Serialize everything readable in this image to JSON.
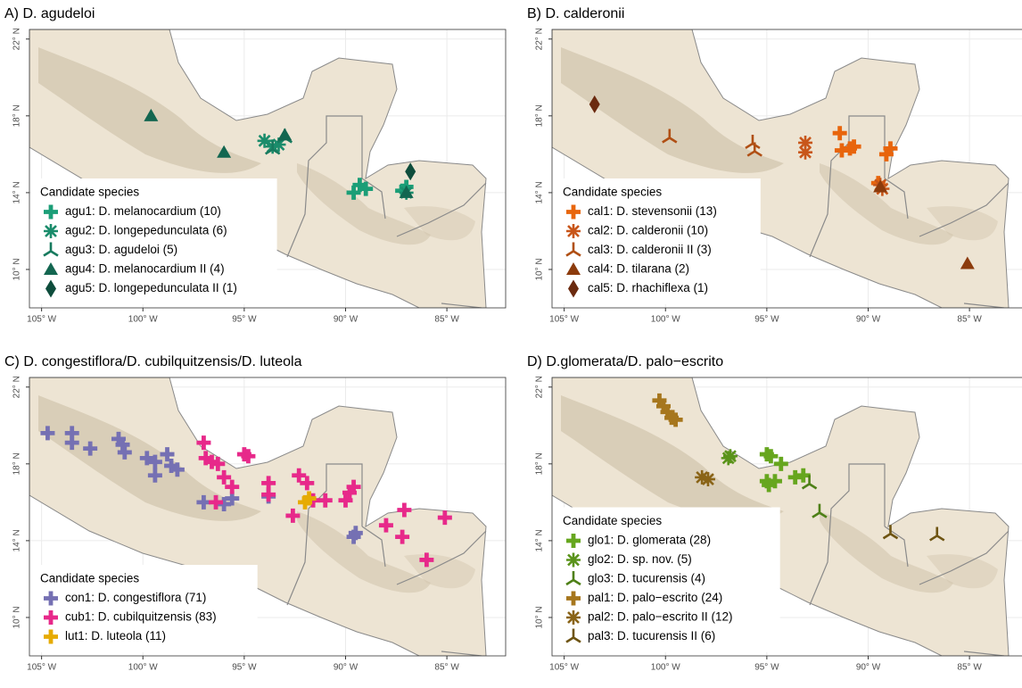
{
  "panels": [
    {
      "title": "A) D. agudeloi",
      "legend_title": "Candidate species",
      "legend_position": "bottom-left",
      "xlim": [
        -105.6,
        -82.1
      ],
      "ylim": [
        8,
        22.5
      ],
      "xticks": [
        {
          "value": -105,
          "label": "105° W"
        },
        {
          "value": -100,
          "label": "100° W"
        },
        {
          "value": -95,
          "label": "95° W"
        },
        {
          "value": -90,
          "label": "90° W"
        },
        {
          "value": -85,
          "label": "85° W"
        }
      ],
      "yticks": [
        {
          "value": 10,
          "label": "10° N"
        },
        {
          "value": 14,
          "label": "14° N"
        },
        {
          "value": 18,
          "label": "18° N"
        },
        {
          "value": 22,
          "label": "22° N"
        }
      ],
      "species": [
        {
          "name": "agu1: D. melanocardium (10)",
          "color": "#1b9e77",
          "shape": "plus",
          "lon": [
            -89.6,
            -89.3,
            -89.0,
            -87.2,
            -87.0
          ],
          "lat": [
            14.0,
            14.4,
            14.2,
            14.1,
            14.3
          ]
        },
        {
          "name": "agu2: D. longepedunculata (6)",
          "color": "#1a8c6b",
          "shape": "star",
          "lon": [
            -94.0,
            -93.6,
            -93.3,
            -87.0
          ],
          "lat": [
            16.7,
            16.4,
            16.5,
            14.0
          ]
        },
        {
          "name": "agu3: D. agudeloi (5)",
          "color": "#177a5e",
          "shape": "tristar",
          "lon": [
            -93.0,
            -93.6
          ],
          "lat": [
            16.9,
            16.3
          ]
        },
        {
          "name": "agu4: D. melanocardium II (4)",
          "color": "#136650",
          "shape": "triangle",
          "lon": [
            -99.6,
            -96.0,
            -93.0,
            -87.0
          ],
          "lat": [
            18.0,
            16.1,
            17.0,
            14.0
          ]
        },
        {
          "name": "agu5: D. longepedunculata II (1)",
          "color": "#0e4d3c",
          "shape": "diamond",
          "lon": [
            -86.8
          ],
          "lat": [
            15.1
          ]
        }
      ]
    },
    {
      "title": "B) D. calderonii",
      "legend_title": "Candidate species",
      "legend_position": "bottom-left",
      "xlim": [
        -105.6,
        -82.1
      ],
      "ylim": [
        8,
        22.5
      ],
      "xticks": [
        {
          "value": -105,
          "label": "105° W"
        },
        {
          "value": -100,
          "label": "100° W"
        },
        {
          "value": -95,
          "label": "95° W"
        },
        {
          "value": -90,
          "label": "90° W"
        },
        {
          "value": -85,
          "label": "85° W"
        }
      ],
      "yticks": [
        {
          "value": 10,
          "label": "10° N"
        },
        {
          "value": 14,
          "label": "14° N"
        },
        {
          "value": 18,
          "label": "18° N"
        },
        {
          "value": 22,
          "label": "22° N"
        }
      ],
      "species": [
        {
          "name": "cal1: D. stevensonii (13)",
          "color": "#e8650c",
          "shape": "plus",
          "lon": [
            -91.4,
            -91.3,
            -90.9,
            -90.7,
            -89.1,
            -88.9,
            -89.5
          ],
          "lat": [
            17.1,
            16.2,
            16.3,
            16.4,
            16.0,
            16.3,
            14.5
          ]
        },
        {
          "name": "cal2: D. calderonii (10)",
          "color": "#c8561a",
          "shape": "star",
          "lon": [
            -93.1,
            -93.1,
            -89.4,
            -89.3
          ],
          "lat": [
            16.6,
            16.1,
            14.4,
            14.2
          ]
        },
        {
          "name": "cal3: D. calderonii II (3)",
          "color": "#b04f14",
          "shape": "tristar",
          "lon": [
            -99.8,
            -95.6,
            -95.7
          ],
          "lat": [
            16.9,
            16.2,
            16.6
          ]
        },
        {
          "name": "cal4: D. tilarana (2)",
          "color": "#8c3b0c",
          "shape": "triangle",
          "lon": [
            -85.1,
            -89.4
          ],
          "lat": [
            10.3,
            14.3
          ]
        },
        {
          "name": "cal5: D. rhachiflexa (1)",
          "color": "#6b2a0f",
          "shape": "diamond",
          "lon": [
            -103.5
          ],
          "lat": [
            18.6
          ]
        }
      ]
    },
    {
      "title": "C) D. congestiflora/D. cubilquitzensis/D. luteola",
      "legend_title": "Candidate species",
      "legend_position": "bottom-left",
      "xlim": [
        -105.6,
        -82.1
      ],
      "ylim": [
        8,
        22.5
      ],
      "xticks": [
        {
          "value": -105,
          "label": "105° W"
        },
        {
          "value": -100,
          "label": "100° W"
        },
        {
          "value": -95,
          "label": "95° W"
        },
        {
          "value": -90,
          "label": "90° W"
        },
        {
          "value": -85,
          "label": "85° W"
        }
      ],
      "yticks": [
        {
          "value": 10,
          "label": "10° N"
        },
        {
          "value": 14,
          "label": "14° N"
        },
        {
          "value": 18,
          "label": "18° N"
        },
        {
          "value": 22,
          "label": "22° N"
        }
      ],
      "species": [
        {
          "name": "con1: D. congestiflora (71)",
          "color": "#7570b3",
          "shape": "plus",
          "lon": [
            -104.7,
            -103.5,
            -103.5,
            -102.6,
            -101.0,
            -100.9,
            -101.2,
            -99.8,
            -99.4,
            -98.8,
            -98.6,
            -99.4,
            -98.3,
            -97.0,
            -96.0,
            -95.6,
            -93.8,
            -89.6,
            -89.5
          ],
          "lat": [
            19.6,
            19.6,
            19.1,
            18.8,
            19.0,
            18.6,
            19.3,
            18.3,
            18.1,
            18.5,
            17.9,
            17.4,
            17.7,
            16.0,
            15.9,
            16.2,
            16.3,
            14.2,
            14.4
          ]
        },
        {
          "name": "cub1: D. cubilquitzensis (83)",
          "color": "#e7298a",
          "shape": "plus",
          "lon": [
            -97.0,
            -96.9,
            -96.6,
            -96.3,
            -96.0,
            -95.6,
            -96.4,
            -95.0,
            -94.8,
            -93.8,
            -93.8,
            -92.6,
            -92.3,
            -91.9,
            -91.6,
            -91.0,
            -90.0,
            -89.8,
            -89.6,
            -88.0,
            -87.1,
            -87.2,
            -86.0,
            -85.1
          ],
          "lat": [
            19.1,
            18.3,
            18.1,
            18.0,
            17.3,
            16.8,
            16.0,
            18.5,
            18.4,
            17.0,
            16.4,
            15.3,
            17.4,
            17.0,
            16.1,
            16.1,
            16.1,
            16.5,
            16.8,
            14.8,
            15.6,
            14.2,
            13.0,
            15.2
          ]
        },
        {
          "name": "lut1: D. luteola (11)",
          "color": "#e6ab02",
          "shape": "plus",
          "lon": [
            -92.0,
            -91.8
          ],
          "lat": [
            16.0,
            16.2
          ]
        }
      ]
    },
    {
      "title": "D) D.glomerata/D. palo−escrito",
      "legend_title": "Candidate species",
      "legend_position": "bottom-left",
      "xlim": [
        -105.6,
        -82.1
      ],
      "ylim": [
        8,
        22.5
      ],
      "xticks": [
        {
          "value": -105,
          "label": "105° W"
        },
        {
          "value": -100,
          "label": "100° W"
        },
        {
          "value": -95,
          "label": "95° W"
        },
        {
          "value": -90,
          "label": "90° W"
        },
        {
          "value": -85,
          "label": "85° W"
        }
      ],
      "yticks": [
        {
          "value": 10,
          "label": "10° N"
        },
        {
          "value": 14,
          "label": "14° N"
        },
        {
          "value": 18,
          "label": "18° N"
        },
        {
          "value": 22,
          "label": "22° N"
        }
      ],
      "species": [
        {
          "name": "glo1: D. glomerata (28)",
          "color": "#66a61e",
          "shape": "plus",
          "lon": [
            -95.0,
            -94.8,
            -94.3,
            -95.0,
            -94.9,
            -94.6,
            -93.6,
            -93.2
          ],
          "lat": [
            18.5,
            18.4,
            18.0,
            17.1,
            16.9,
            17.1,
            17.3,
            17.4
          ]
        },
        {
          "name": "glo2: D. sp. nov. (5)",
          "color": "#5a931a",
          "shape": "star",
          "lon": [
            -96.9,
            -96.8
          ],
          "lat": [
            18.3,
            18.4
          ]
        },
        {
          "name": "glo3: D. tucurensis (4)",
          "color": "#4e8017",
          "shape": "tristar",
          "lon": [
            -92.9,
            -92.4
          ],
          "lat": [
            17.0,
            15.5
          ]
        },
        {
          "name": "pal1: D. palo−escrito (24)",
          "color": "#a6761d",
          "shape": "plus",
          "lon": [
            -100.3,
            -100.1,
            -99.9,
            -99.7,
            -99.5
          ],
          "lat": [
            21.3,
            21.0,
            20.7,
            20.4,
            20.3
          ]
        },
        {
          "name": "pal2: D. palo−escrito II (12)",
          "color": "#8a6417",
          "shape": "star",
          "lon": [
            -98.2,
            -97.9
          ],
          "lat": [
            17.3,
            17.2
          ]
        },
        {
          "name": "pal3: D. tucurensis II (6)",
          "color": "#6e5412",
          "shape": "tristar",
          "lon": [
            -88.9,
            -86.6
          ],
          "lat": [
            14.4,
            14.3
          ]
        }
      ]
    }
  ]
}
